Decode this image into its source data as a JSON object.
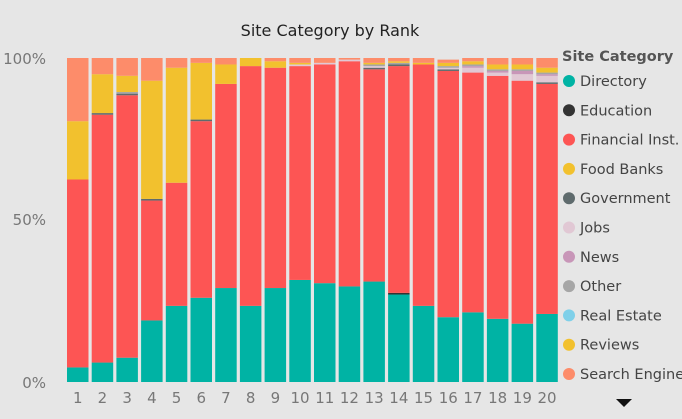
{
  "chart_data": {
    "type": "bar",
    "stacked": "100%",
    "title": "Site Category by Rank",
    "xlabel": "",
    "ylabel": "",
    "ylim": [
      0,
      100
    ],
    "yticks": [
      "0%",
      "50%",
      "100%"
    ],
    "categories": [
      "1",
      "2",
      "3",
      "4",
      "5",
      "6",
      "7",
      "8",
      "9",
      "10",
      "11",
      "12",
      "13",
      "14",
      "15",
      "16",
      "17",
      "18",
      "19",
      "20"
    ],
    "legend": {
      "title": "Site Category",
      "position": "right"
    },
    "series": [
      {
        "name": "Directory",
        "color": "#00b3a4",
        "values": [
          4.5,
          6,
          7.5,
          19,
          23.5,
          26,
          29,
          23.5,
          29,
          31.5,
          30.5,
          29.5,
          31,
          27,
          23.5,
          20,
          21.5,
          19.5,
          18,
          21
        ]
      },
      {
        "name": "Education",
        "color": "#333333",
        "values": [
          0,
          0,
          0,
          0,
          0,
          0,
          0,
          0,
          0,
          0,
          0,
          0,
          0,
          0.5,
          0,
          0,
          0,
          0,
          0,
          0
        ]
      },
      {
        "name": "Financial Inst.",
        "color": "#fd5554",
        "values": [
          58,
          76.5,
          81,
          37,
          38,
          54.5,
          63,
          74,
          68,
          66,
          67.5,
          69.5,
          65.5,
          70,
          74.5,
          76,
          74,
          75,
          75,
          71
        ]
      },
      {
        "name": "Food Banks",
        "color": "#f2c12e",
        "values": [
          0,
          0,
          0,
          0,
          0,
          0,
          0,
          0,
          0,
          0,
          0,
          0,
          0,
          0,
          0,
          0,
          0,
          0,
          0,
          0
        ]
      },
      {
        "name": "Government",
        "color": "#5f6b6d",
        "values": [
          0,
          0.5,
          0.5,
          0.5,
          0,
          0.5,
          0,
          0,
          0,
          0,
          0,
          0,
          0.5,
          0.5,
          0,
          0.5,
          0,
          0,
          0,
          0.5
        ]
      },
      {
        "name": "Jobs",
        "color": "#e1c8d4",
        "values": [
          0,
          0,
          0,
          0,
          0,
          0,
          0,
          0,
          0,
          0.5,
          0.5,
          0.5,
          0.5,
          0,
          0,
          0.5,
          1.5,
          1,
          2,
          2
        ]
      },
      {
        "name": "News",
        "color": "#c896b8",
        "values": [
          0,
          0,
          0,
          0,
          0,
          0,
          0,
          0,
          0,
          0,
          0,
          0,
          0,
          0,
          0,
          0,
          0.5,
          0.5,
          1,
          0.5
        ]
      },
      {
        "name": "Other",
        "color": "#a6a6a6",
        "values": [
          0,
          0,
          0.5,
          0,
          0,
          0,
          0,
          0,
          0,
          0,
          0,
          0,
          0.5,
          0.5,
          0,
          0.5,
          0.5,
          0.5,
          0.5,
          0.5
        ]
      },
      {
        "name": "Real Estate",
        "color": "#7fd0e9",
        "values": [
          0,
          0,
          0,
          0,
          0,
          0,
          0,
          0,
          0,
          0,
          0,
          0,
          0,
          0,
          0,
          0,
          0,
          0,
          0,
          0
        ]
      },
      {
        "name": "Reviews",
        "color": "#f2c12e",
        "values": [
          18,
          12,
          5,
          36.5,
          35.5,
          17.5,
          6,
          2.5,
          2,
          0.5,
          0,
          0,
          0.5,
          0.5,
          0.5,
          1,
          1,
          1.5,
          1.5,
          1.5
        ]
      },
      {
        "name": "Search Engine",
        "color": "#fd8c6a",
        "values": [
          19.5,
          5,
          5.5,
          7,
          3,
          1.5,
          2,
          0,
          1,
          1.5,
          1.5,
          0.5,
          1.5,
          1,
          1.5,
          1,
          1,
          2,
          2,
          3
        ]
      }
    ]
  }
}
